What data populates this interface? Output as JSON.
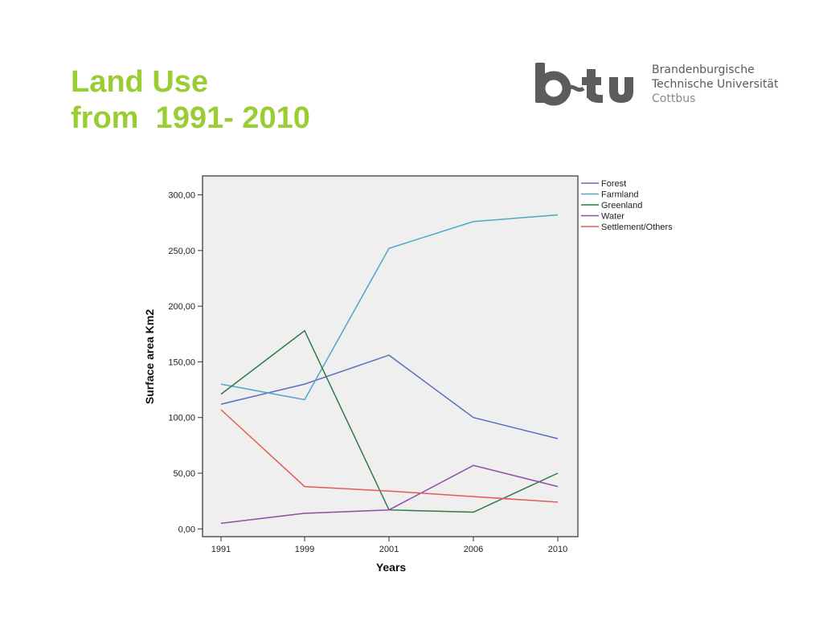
{
  "slide": {
    "title_line1": "Land Use",
    "title_line2": "from  1991- 2010",
    "title_color": "#9ACD32"
  },
  "logo": {
    "wordmark": "b-tu",
    "org_line1": "Brandenburgische",
    "org_line2": "Technische Universität",
    "org_line3": "Cottbus"
  },
  "chart_data": {
    "type": "line",
    "title": "",
    "xlabel": "Years",
    "ylabel": "Surface area Km2",
    "categories": [
      "1991",
      "1999",
      "2001",
      "2006",
      "2010"
    ],
    "y_ticks": [
      "0,00",
      "50,00",
      "100,00",
      "150,00",
      "200,00",
      "250,00",
      "300,00"
    ],
    "ylim": [
      -7,
      317
    ],
    "grid": false,
    "legend": "top-right outside plot",
    "plot_background": "#EFEFEF",
    "series": [
      {
        "name": "Forest",
        "color": "#5B6FBE",
        "values": [
          112,
          130,
          156,
          100,
          81
        ]
      },
      {
        "name": "Farmland",
        "color": "#4FA7C9",
        "values": [
          130,
          116,
          252,
          276,
          282
        ]
      },
      {
        "name": "Greenland",
        "color": "#2E7A45",
        "values": [
          121,
          178,
          17,
          15,
          50
        ]
      },
      {
        "name": "Water",
        "color": "#8E4FA5",
        "values": [
          5,
          14,
          17,
          57,
          38
        ]
      },
      {
        "name": "Settlement/Others",
        "color": "#E55A55",
        "values": [
          107,
          38,
          34,
          29,
          24
        ]
      }
    ]
  }
}
